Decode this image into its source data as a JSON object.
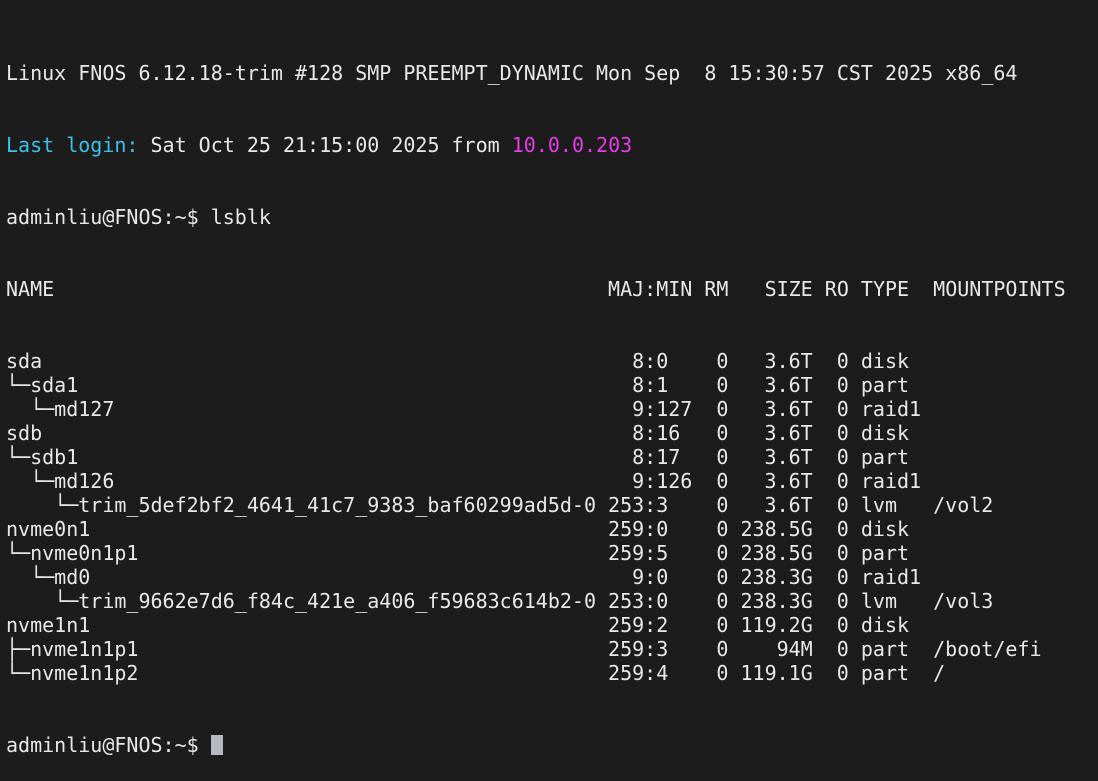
{
  "terminal": {
    "colors": {
      "background": "#1c1c1c",
      "text": "#e8e8e8",
      "label": "#3ec0e8",
      "ip": "#e83ce8",
      "cursor": "#b8b8c2"
    },
    "banner": "Linux FNOS 6.12.18-trim #128 SMP PREEMPT_DYNAMIC Mon Sep  8 15:30:57 CST 2025 x86_64",
    "last_login": {
      "label": "Last login:",
      "text": " Sat Oct 25 21:15:00 2025 from ",
      "ip": "10.0.0.203"
    },
    "prompt": "adminliu@FNOS:~$ ",
    "command": "lsblk",
    "table": {
      "headers": {
        "name": "NAME",
        "majmin": "MAJ:MIN",
        "rm": "RM",
        "size": "SIZE",
        "ro": "RO",
        "type": "TYPE",
        "mountpoints": "MOUNTPOINTS"
      },
      "rows": [
        {
          "name": "sda",
          "maj": "8",
          "min": "0",
          "rm": "0",
          "size": "3.6T",
          "ro": "0",
          "type": "disk",
          "mount": ""
        },
        {
          "name": "└─sda1",
          "maj": "8",
          "min": "1",
          "rm": "0",
          "size": "3.6T",
          "ro": "0",
          "type": "part",
          "mount": ""
        },
        {
          "name": "  └─md127",
          "maj": "9",
          "min": "127",
          "rm": "0",
          "size": "3.6T",
          "ro": "0",
          "type": "raid1",
          "mount": ""
        },
        {
          "name": "sdb",
          "maj": "8",
          "min": "16",
          "rm": "0",
          "size": "3.6T",
          "ro": "0",
          "type": "disk",
          "mount": ""
        },
        {
          "name": "└─sdb1",
          "maj": "8",
          "min": "17",
          "rm": "0",
          "size": "3.6T",
          "ro": "0",
          "type": "part",
          "mount": ""
        },
        {
          "name": "  └─md126",
          "maj": "9",
          "min": "126",
          "rm": "0",
          "size": "3.6T",
          "ro": "0",
          "type": "raid1",
          "mount": ""
        },
        {
          "name": "    └─trim_5def2bf2_4641_41c7_9383_baf60299ad5d-0",
          "maj": "253",
          "min": "3",
          "rm": "0",
          "size": "3.6T",
          "ro": "0",
          "type": "lvm",
          "mount": "/vol2"
        },
        {
          "name": "nvme0n1",
          "maj": "259",
          "min": "0",
          "rm": "0",
          "size": "238.5G",
          "ro": "0",
          "type": "disk",
          "mount": ""
        },
        {
          "name": "└─nvme0n1p1",
          "maj": "259",
          "min": "5",
          "rm": "0",
          "size": "238.5G",
          "ro": "0",
          "type": "part",
          "mount": ""
        },
        {
          "name": "  └─md0",
          "maj": "9",
          "min": "0",
          "rm": "0",
          "size": "238.3G",
          "ro": "0",
          "type": "raid1",
          "mount": ""
        },
        {
          "name": "    └─trim_9662e7d6_f84c_421e_a406_f59683c614b2-0",
          "maj": "253",
          "min": "0",
          "rm": "0",
          "size": "238.3G",
          "ro": "0",
          "type": "lvm",
          "mount": "/vol3"
        },
        {
          "name": "nvme1n1",
          "maj": "259",
          "min": "2",
          "rm": "0",
          "size": "119.2G",
          "ro": "0",
          "type": "disk",
          "mount": ""
        },
        {
          "name": "├─nvme1n1p1",
          "maj": "259",
          "min": "3",
          "rm": "0",
          "size": "94M",
          "ro": "0",
          "type": "part",
          "mount": "/boot/efi"
        },
        {
          "name": "└─nvme1n1p2",
          "maj": "259",
          "min": "4",
          "rm": "0",
          "size": "119.1G",
          "ro": "0",
          "type": "part",
          "mount": "/"
        }
      ]
    }
  }
}
